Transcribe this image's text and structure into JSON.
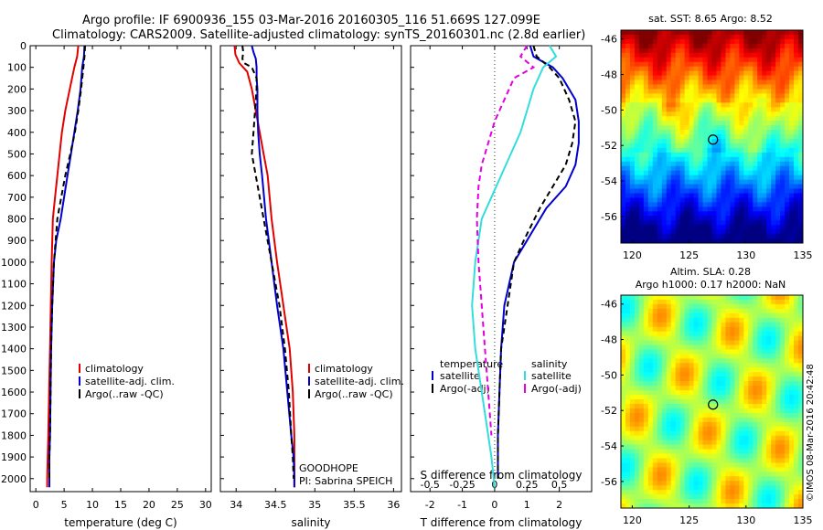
{
  "header": {
    "line1": "Argo profile: IF 6900936_155 03-Mar-2016 20160305_116 51.669S 127.099E",
    "line2": "Climatology: CARS2009. Satellite-adjusted climatology: synTS_20160301.nc (2.8d earlier)"
  },
  "colors": {
    "climatology": "#e00000",
    "satellite": "#0000d0",
    "argo": "#000000",
    "salinity_diff": "#33dddd",
    "argo_salinity_diff": "#e000e0"
  },
  "chart_data": [
    {
      "type": "line",
      "id": "temperature",
      "xlabel": "temperature (deg C)",
      "ylabel": "",
      "xlim": [
        -1,
        31
      ],
      "ylim": [
        2060,
        0
      ],
      "xticks": [
        0,
        5,
        10,
        15,
        20,
        25,
        30
      ],
      "yticks": [
        0,
        100,
        200,
        300,
        400,
        500,
        600,
        700,
        800,
        900,
        1000,
        1100,
        1200,
        1300,
        1400,
        1500,
        1600,
        1700,
        1800,
        1900,
        2000
      ],
      "legend": [
        "climatology",
        "satellite-adj. clim.",
        "Argo(..raw -QC)"
      ],
      "series": [
        {
          "name": "climatology",
          "color": "#e00000",
          "dash": "",
          "x": [
            7.5,
            7.3,
            6.8,
            6.0,
            5.2,
            4.6,
            4.2,
            3.8,
            3.4,
            3.0,
            2.8,
            2.65,
            2.5,
            2.35,
            2.2,
            2.1,
            2.0,
            2.0
          ],
          "y": [
            0,
            50,
            100,
            200,
            300,
            400,
            500,
            600,
            700,
            800,
            1000,
            1200,
            1400,
            1600,
            1800,
            1900,
            2000,
            2040
          ]
        },
        {
          "name": "satellite-adj. clim.",
          "color": "#0000d0",
          "dash": "",
          "x": [
            8.6,
            8.5,
            8.2,
            7.9,
            7.4,
            6.8,
            6.2,
            5.6,
            5.0,
            4.4,
            3.6,
            3.2,
            2.9,
            2.7,
            2.6,
            2.5,
            2.4,
            2.4,
            2.4
          ],
          "y": [
            0,
            50,
            100,
            200,
            300,
            400,
            500,
            600,
            700,
            800,
            900,
            1000,
            1200,
            1400,
            1600,
            1800,
            1900,
            2000,
            2040
          ]
        },
        {
          "name": "Argo(..raw -QC)",
          "color": "#000000",
          "dash": "6,4",
          "x": [
            8.7,
            8.6,
            8.4,
            8.0,
            7.5,
            6.9,
            6.1,
            5.2,
            4.5,
            3.8,
            3.2,
            2.9,
            2.7,
            2.6,
            2.5,
            2.4,
            2.4
          ],
          "y": [
            0,
            50,
            100,
            200,
            300,
            400,
            500,
            600,
            700,
            800,
            1000,
            1200,
            1400,
            1600,
            1800,
            1900,
            2000
          ]
        }
      ]
    },
    {
      "type": "line",
      "id": "salinity",
      "xlabel": "salinity",
      "ylabel": "",
      "xlim": [
        33.8,
        36.1
      ],
      "ylim": [
        2060,
        0
      ],
      "xticks": [
        34,
        34.5,
        35,
        35.5,
        36
      ],
      "legend": [
        "climatology",
        "satellite-adj. clim.",
        "Argo(..raw -QC)"
      ],
      "annotation": [
        "GOODHOPE",
        "PI: Sabrina SPEICH"
      ],
      "series": [
        {
          "name": "climatology",
          "color": "#e00000",
          "dash": "",
          "x": [
            33.98,
            33.99,
            34.04,
            34.14,
            34.2,
            34.25,
            34.3,
            34.35,
            34.4,
            34.45,
            34.52,
            34.6,
            34.68,
            34.72,
            34.74,
            34.74,
            34.74
          ],
          "y": [
            0,
            40,
            80,
            120,
            200,
            300,
            400,
            500,
            600,
            800,
            1000,
            1200,
            1400,
            1600,
            1800,
            1900,
            2040
          ]
        },
        {
          "name": "satellite-adj. clim.",
          "color": "#0000d0",
          "dash": "",
          "x": [
            34.2,
            34.22,
            34.25,
            34.26,
            34.26,
            34.27,
            34.27,
            34.28,
            34.3,
            34.33,
            34.38,
            34.45,
            34.52,
            34.6,
            34.65,
            34.7,
            34.73,
            34.74,
            34.74
          ],
          "y": [
            0,
            30,
            60,
            100,
            150,
            200,
            300,
            400,
            500,
            600,
            800,
            1000,
            1200,
            1400,
            1600,
            1800,
            1900,
            2000,
            2040
          ]
        },
        {
          "name": "Argo(..raw -QC)",
          "color": "#000000",
          "dash": "6,4",
          "x": [
            34.08,
            34.09,
            34.08,
            34.1,
            34.2,
            34.26,
            34.26,
            34.24,
            34.22,
            34.2,
            34.25,
            34.35,
            34.45,
            34.55,
            34.62,
            34.67,
            34.7,
            34.72,
            34.73
          ],
          "y": [
            0,
            30,
            60,
            80,
            100,
            150,
            200,
            300,
            400,
            500,
            600,
            800,
            1000,
            1200,
            1400,
            1600,
            1800,
            1900,
            2000
          ]
        }
      ]
    },
    {
      "type": "line",
      "id": "difference",
      "xlabel": "T difference from climatology",
      "xlabel_top": "S difference from climatology",
      "xlim": [
        -2.6,
        3.0
      ],
      "ylim": [
        2060,
        0
      ],
      "xticks": [
        -2,
        -1,
        0,
        1,
        2
      ],
      "xticks_top": [
        "-0.5",
        "-0.25",
        "0",
        "0.25",
        "0.5"
      ],
      "legend_temperature": {
        "title": "temperature",
        "items": [
          "satellite",
          "Argo(-adj)"
        ]
      },
      "legend_salinity": {
        "title": "salinity",
        "items": [
          "satellite",
          "Argo(-adj)"
        ]
      },
      "series": [
        {
          "name": "temperature satellite",
          "color": "#0000d0",
          "dash": "",
          "x": [
            1.1,
            1.2,
            1.8,
            2.1,
            2.5,
            2.6,
            2.6,
            2.5,
            2.2,
            1.6,
            1.0,
            0.6,
            0.3,
            0.2,
            0.15,
            0.1,
            0.1,
            0.1
          ],
          "y": [
            0,
            50,
            100,
            150,
            250,
            350,
            450,
            550,
            650,
            750,
            900,
            1000,
            1200,
            1400,
            1600,
            1800,
            1900,
            2000
          ]
        },
        {
          "name": "temperature Argo(-adj)",
          "color": "#000000",
          "dash": "6,4",
          "x": [
            1.2,
            1.3,
            1.7,
            2.0,
            2.3,
            2.5,
            2.4,
            2.2,
            1.8,
            1.4,
            0.9,
            0.6,
            0.4,
            0.2,
            0.15,
            0.1,
            0.1
          ],
          "y": [
            0,
            50,
            100,
            150,
            250,
            350,
            450,
            550,
            650,
            750,
            900,
            1000,
            1200,
            1400,
            1600,
            1800,
            2000
          ]
        },
        {
          "name": "salinity satellite",
          "color": "#33dddd",
          "dash": "",
          "x": [
            1.7,
            1.9,
            1.5,
            1.2,
            1.0,
            0.8,
            0.5,
            0.2,
            -0.1,
            -0.4,
            -0.6,
            -0.7,
            -0.6,
            -0.4,
            -0.2,
            -0.1,
            0.0
          ],
          "y": [
            0,
            50,
            100,
            200,
            300,
            400,
            500,
            600,
            700,
            800,
            1000,
            1200,
            1400,
            1600,
            1800,
            1900,
            2040
          ]
        },
        {
          "name": "salinity Argo(-adj)",
          "color": "#e000e0",
          "dash": "6,4",
          "x": [
            1.0,
            0.8,
            1.2,
            0.6,
            0.3,
            0.0,
            -0.2,
            -0.4,
            -0.5,
            -0.55,
            -0.5,
            -0.4,
            -0.3,
            -0.2,
            -0.1
          ],
          "y": [
            0,
            50,
            100,
            150,
            250,
            350,
            450,
            550,
            650,
            800,
            1000,
            1200,
            1400,
            1600,
            1800
          ]
        }
      ]
    },
    {
      "type": "heatmap",
      "id": "sst-map",
      "title": "sat. SST: 8.65 Argo: 8.52",
      "xlim": [
        119,
        135
      ],
      "ylim": [
        -57.5,
        -45.5
      ],
      "xticks": [
        120,
        125,
        130,
        135
      ],
      "yticks": [
        -46,
        -48,
        -50,
        -52,
        -54,
        -56
      ],
      "marker": {
        "lon": 127.099,
        "lat": -51.669
      }
    },
    {
      "type": "heatmap",
      "id": "sla-map",
      "title": "Altim. SLA: 0.28",
      "subtitle": "Argo h1000: 0.17 h2000: NaN",
      "xlim": [
        119,
        135
      ],
      "ylim": [
        -57.5,
        -45.5
      ],
      "xticks": [
        120,
        125,
        130,
        135
      ],
      "yticks": [
        -46,
        -48,
        -50,
        -52,
        -54,
        -56
      ],
      "marker": {
        "lon": 127.099,
        "lat": -51.669
      }
    }
  ],
  "credit": "©IMOS 08-Mar-2016 20:42:48"
}
